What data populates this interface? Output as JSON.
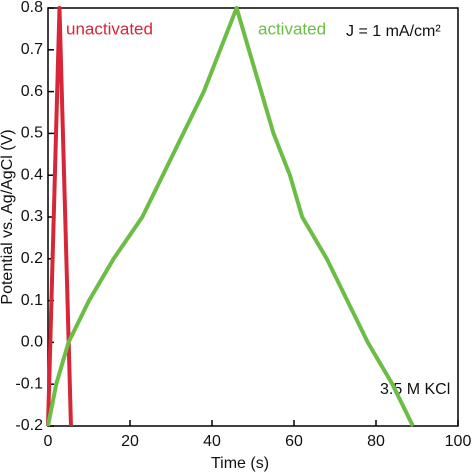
{
  "chart_data": {
    "type": "line",
    "xlabel": "Time (s)",
    "ylabel": "Potential vs. Ag/AgCl (V)",
    "xlim": [
      0,
      100
    ],
    "ylim": [
      -0.2,
      0.8
    ],
    "xticks": [
      0,
      20,
      40,
      60,
      80,
      100
    ],
    "yticks": [
      -0.2,
      -0.1,
      {
        "value": 0,
        "label": "0.0"
      },
      0.1,
      0.2,
      0.3,
      0.4,
      0.5,
      0.6,
      0.7,
      0.8
    ],
    "series": [
      {
        "name": "unactivated",
        "color": "#d62638",
        "x": [
          0,
          2.8,
          5.6
        ],
        "values": [
          -0.2,
          0.8,
          -0.2
        ]
      },
      {
        "name": "activated",
        "color": "#6cbd45",
        "x": [
          0,
          2,
          5,
          10,
          16,
          23,
          28,
          33,
          38,
          42,
          46,
          49,
          52,
          55,
          59,
          62,
          68,
          73,
          78,
          84,
          89
        ],
        "values": [
          -0.2,
          -0.1,
          0.0,
          0.1,
          0.2,
          0.3,
          0.4,
          0.5,
          0.6,
          0.7,
          0.8,
          0.7,
          0.6,
          0.5,
          0.4,
          0.3,
          0.2,
          0.1,
          0.0,
          -0.1,
          -0.2
        ]
      }
    ],
    "annotations": [
      "J = 1 mA/cm²",
      "3.5 M KCl"
    ]
  }
}
